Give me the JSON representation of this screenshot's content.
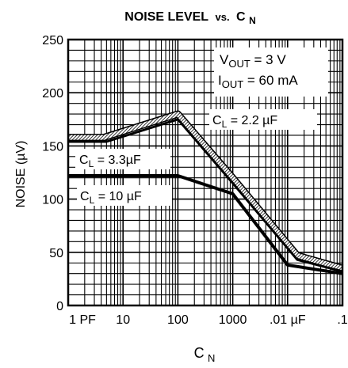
{
  "chart_data": {
    "type": "line",
    "title_main": "NOISE LEVEL",
    "title_vs": "vs.",
    "title_var_base": "C",
    "title_var_sub": "N",
    "xlabel_base": "C",
    "xlabel_sub": "N",
    "ylabel": "NOISE (µV)",
    "x_scale": "log",
    "x_decades": [
      1,
      10,
      100,
      1000,
      10000,
      100000
    ],
    "x_tick_labels": [
      "1 PF",
      "10",
      "100",
      "1000",
      ".01 µF",
      ".1"
    ],
    "ylim": [
      0,
      250
    ],
    "y_ticks": [
      0,
      50,
      100,
      150,
      200,
      250
    ],
    "grid": true,
    "series": [
      {
        "id": "cl22",
        "label_base": "C",
        "label_sub": "L",
        "label_rest": " = 2.2 µF",
        "style": "hatched",
        "x": [
          1,
          4.5,
          100,
          1000,
          15000,
          100000
        ],
        "y": [
          158,
          158,
          180,
          120,
          47,
          35
        ]
      },
      {
        "id": "cl33",
        "label_base": "C",
        "label_sub": "L",
        "label_rest": " = 3.3µF",
        "style": "solid",
        "x": [
          1,
          5,
          100,
          1000,
          15000,
          100000
        ],
        "y": [
          154,
          154,
          175,
          115,
          43,
          32
        ]
      },
      {
        "id": "cl10",
        "label_base": "C",
        "label_sub": "L",
        "label_rest": " = 10 µF",
        "style": "thick",
        "x": [
          1,
          100,
          1000,
          10000,
          100000
        ],
        "y": [
          122,
          122,
          105,
          38,
          30
        ]
      }
    ],
    "annotation": {
      "vout_base": "V",
      "vout_sub": "OUT",
      "vout_rest": " = 3 V",
      "iout_base": "I",
      "iout_sub": "OUT",
      "iout_rest": " = 60 mA"
    }
  }
}
